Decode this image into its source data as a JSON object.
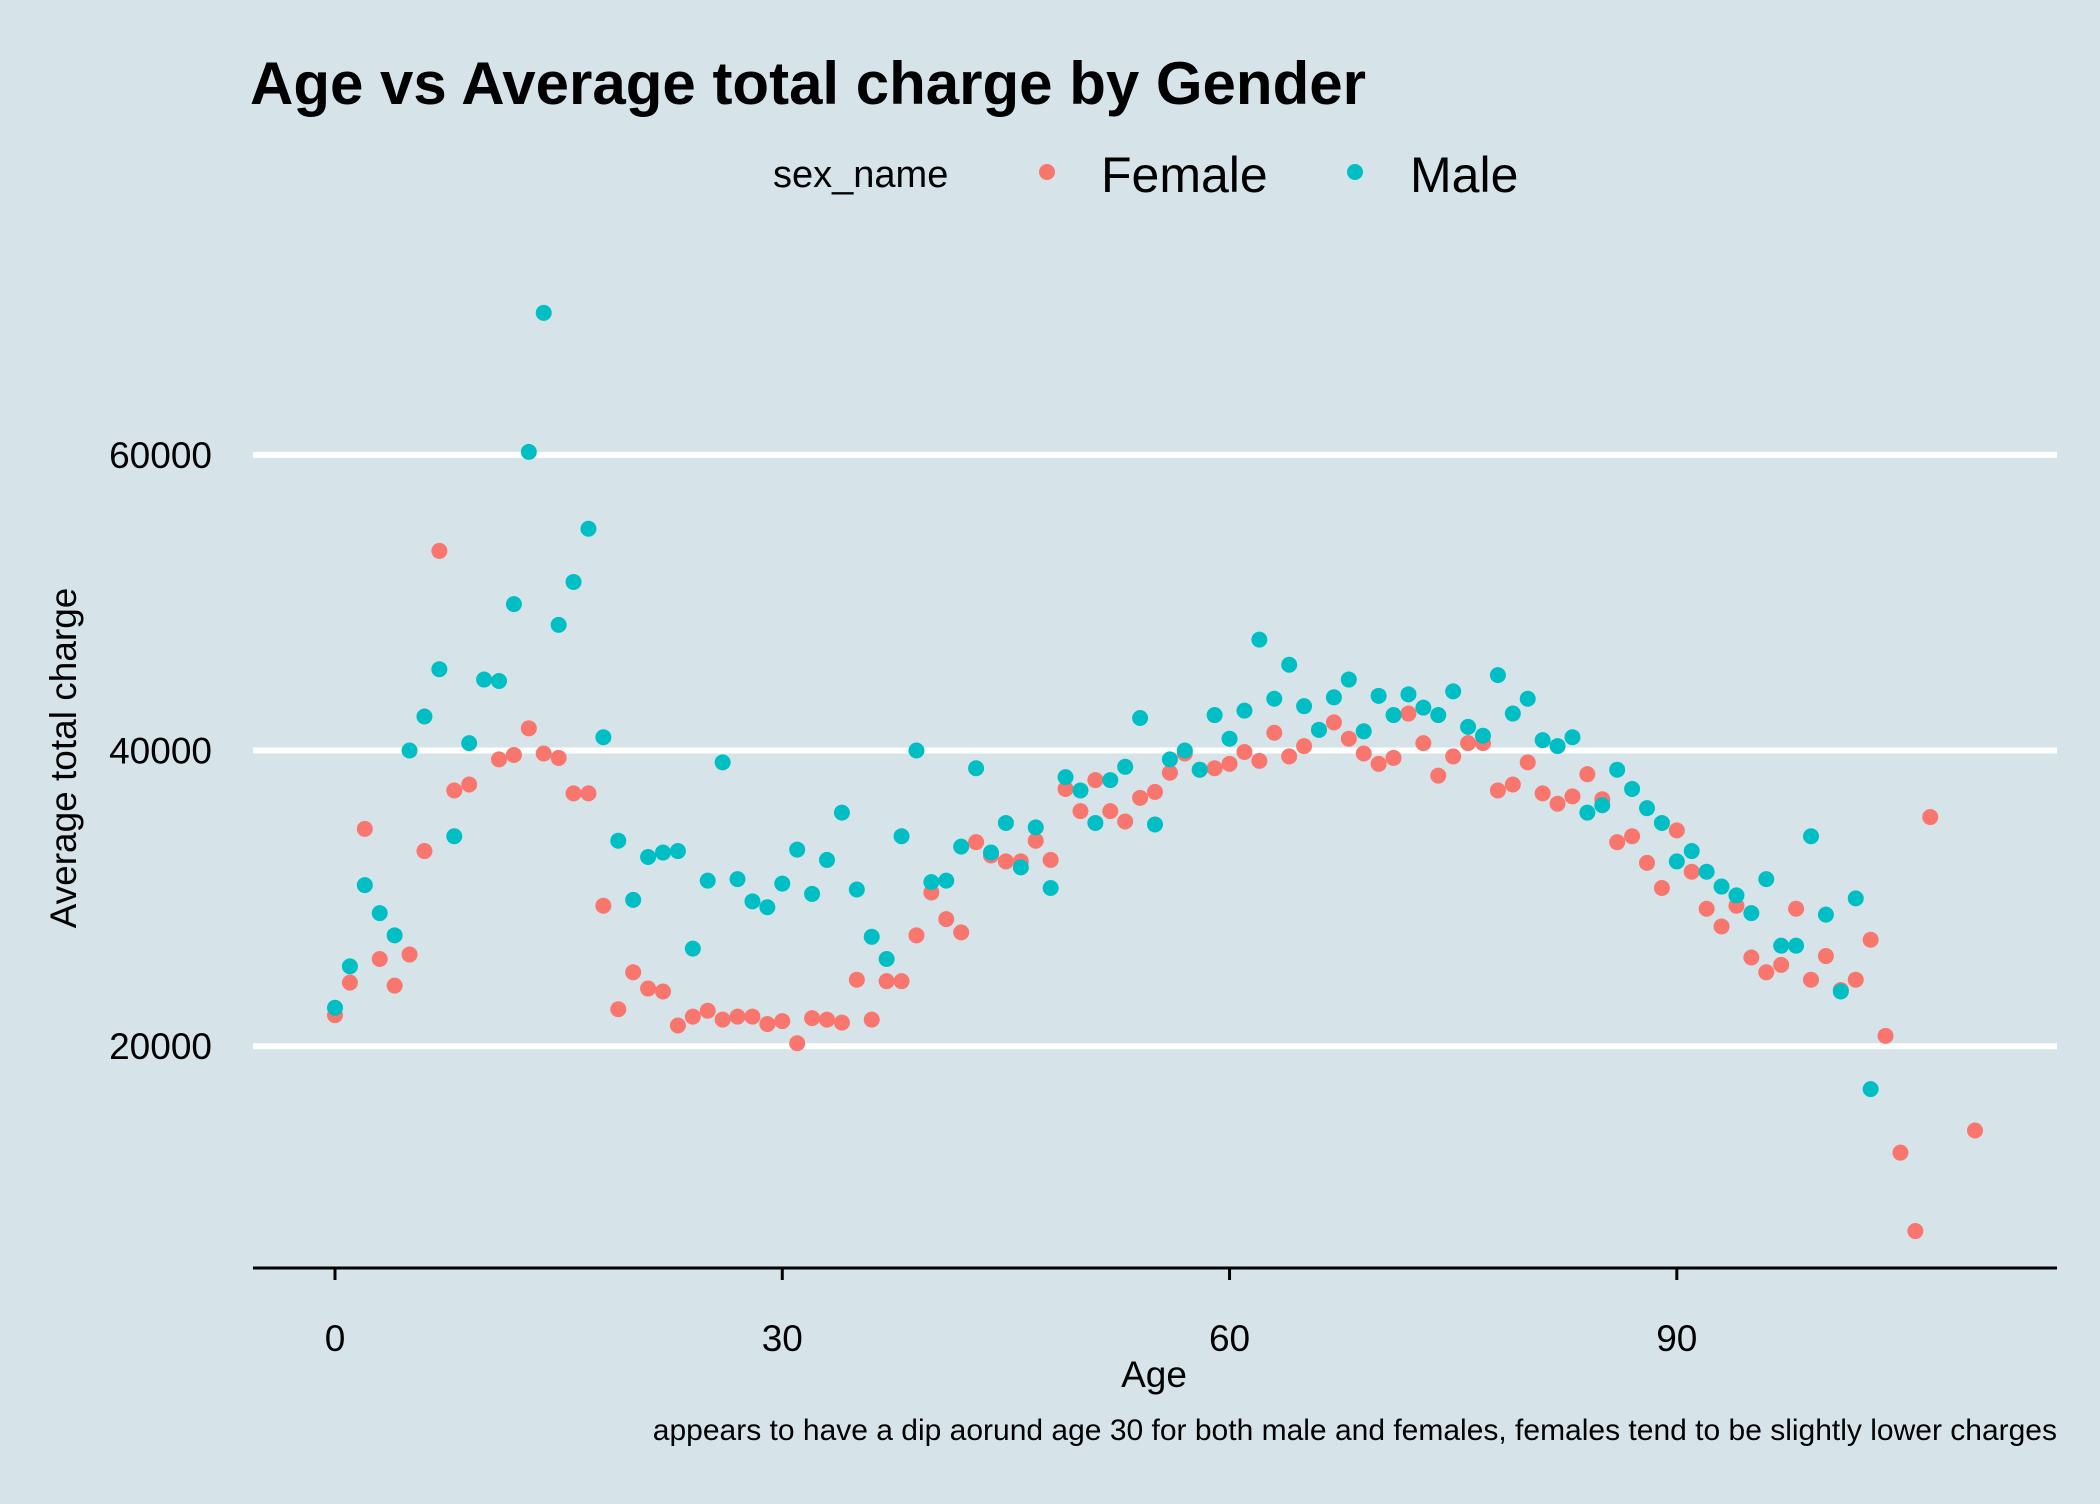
{
  "colors": {
    "background": "#d6e4ea",
    "gridline": "#ffffff",
    "axis": "#000000"
  },
  "chart_data": {
    "type": "scatter",
    "title": "Age vs Average total charge by Gender",
    "xlabel": "Age",
    "ylabel": "Average total charge",
    "caption": "appears to have a dip aorund age 30 for both male and females, females tend to be slightly lower charges",
    "legend": {
      "title": "sex_name",
      "placement": "top"
    },
    "xlim": [
      -5.5,
      115.5
    ],
    "ylim": [
      5000,
      72500
    ],
    "x_ticks": [
      0,
      30,
      60,
      90
    ],
    "y_ticks": [
      20000,
      40000,
      60000
    ],
    "grid": "horizontal-major",
    "series": [
      {
        "name": "Female",
        "color": "#f8766d",
        "points": [
          [
            0,
            22100
          ],
          [
            1,
            24300
          ],
          [
            2,
            34700
          ],
          [
            3,
            25900
          ],
          [
            4,
            24100
          ],
          [
            5,
            26200
          ],
          [
            6,
            33200
          ],
          [
            7,
            53500
          ],
          [
            8,
            37300
          ],
          [
            9,
            37700
          ],
          [
            11,
            39400
          ],
          [
            12,
            39700
          ],
          [
            13,
            41500
          ],
          [
            14,
            39800
          ],
          [
            15,
            39500
          ],
          [
            16,
            37100
          ],
          [
            17,
            37100
          ],
          [
            18,
            29500
          ],
          [
            19,
            22500
          ],
          [
            20,
            25000
          ],
          [
            21,
            23900
          ],
          [
            22,
            23700
          ],
          [
            23,
            21400
          ],
          [
            24,
            22000
          ],
          [
            25,
            22400
          ],
          [
            26,
            21800
          ],
          [
            27,
            22000
          ],
          [
            28,
            22000
          ],
          [
            29,
            21500
          ],
          [
            30,
            21700
          ],
          [
            31,
            20200
          ],
          [
            32,
            21900
          ],
          [
            33,
            21800
          ],
          [
            34,
            21600
          ],
          [
            35,
            24500
          ],
          [
            36,
            21800
          ],
          [
            37,
            24400
          ],
          [
            38,
            24400
          ],
          [
            39,
            27500
          ],
          [
            40,
            30400
          ],
          [
            41,
            28600
          ],
          [
            42,
            27700
          ],
          [
            43,
            33800
          ],
          [
            44,
            32900
          ],
          [
            45,
            32500
          ],
          [
            46,
            32500
          ],
          [
            47,
            33900
          ],
          [
            48,
            32600
          ],
          [
            49,
            37400
          ],
          [
            50,
            35900
          ],
          [
            51,
            38000
          ],
          [
            52,
            35900
          ],
          [
            53,
            35200
          ],
          [
            54,
            36800
          ],
          [
            55,
            37200
          ],
          [
            56,
            38500
          ],
          [
            57,
            39800
          ],
          [
            58,
            38700
          ],
          [
            59,
            38800
          ],
          [
            60,
            39100
          ],
          [
            61,
            39900
          ],
          [
            62,
            39300
          ],
          [
            63,
            41200
          ],
          [
            64,
            39600
          ],
          [
            65,
            40300
          ],
          [
            66,
            41400
          ],
          [
            67,
            41900
          ],
          [
            68,
            40800
          ],
          [
            69,
            39800
          ],
          [
            70,
            39100
          ],
          [
            71,
            39500
          ],
          [
            72,
            42500
          ],
          [
            73,
            40500
          ],
          [
            74,
            38300
          ],
          [
            75,
            39600
          ],
          [
            76,
            40500
          ],
          [
            77,
            40500
          ],
          [
            78,
            37300
          ],
          [
            79,
            37700
          ],
          [
            80,
            39200
          ],
          [
            81,
            37100
          ],
          [
            82,
            36400
          ],
          [
            83,
            36900
          ],
          [
            84,
            38400
          ],
          [
            85,
            36700
          ],
          [
            86,
            33800
          ],
          [
            87,
            34200
          ],
          [
            88,
            32400
          ],
          [
            89,
            30700
          ],
          [
            90,
            34600
          ],
          [
            91,
            31800
          ],
          [
            92,
            29300
          ],
          [
            93,
            28100
          ],
          [
            94,
            29500
          ],
          [
            95,
            26000
          ],
          [
            96,
            25000
          ],
          [
            97,
            25500
          ],
          [
            98,
            29300
          ],
          [
            99,
            24500
          ],
          [
            100,
            26100
          ],
          [
            101,
            23800
          ],
          [
            102,
            24500
          ],
          [
            103,
            27200
          ],
          [
            104,
            20700
          ],
          [
            105,
            12800
          ],
          [
            106,
            7500
          ],
          [
            107,
            35500
          ],
          [
            110,
            14300
          ]
        ]
      },
      {
        "name": "Male",
        "color": "#00bfc4",
        "points": [
          [
            0,
            22600
          ],
          [
            1,
            25400
          ],
          [
            2,
            30900
          ],
          [
            3,
            29000
          ],
          [
            4,
            27500
          ],
          [
            5,
            40000
          ],
          [
            6,
            42300
          ],
          [
            7,
            45500
          ],
          [
            8,
            34200
          ],
          [
            9,
            40500
          ],
          [
            10,
            44800
          ],
          [
            11,
            44700
          ],
          [
            12,
            49900
          ],
          [
            13,
            60200
          ],
          [
            14,
            69600
          ],
          [
            15,
            48500
          ],
          [
            16,
            51400
          ],
          [
            17,
            55000
          ],
          [
            18,
            40900
          ],
          [
            19,
            33900
          ],
          [
            20,
            29900
          ],
          [
            21,
            32800
          ],
          [
            22,
            33100
          ],
          [
            23,
            33200
          ],
          [
            24,
            26600
          ],
          [
            25,
            31200
          ],
          [
            26,
            39200
          ],
          [
            27,
            31300
          ],
          [
            28,
            29800
          ],
          [
            29,
            29400
          ],
          [
            30,
            31000
          ],
          [
            31,
            33300
          ],
          [
            32,
            30300
          ],
          [
            33,
            32600
          ],
          [
            34,
            35800
          ],
          [
            35,
            30600
          ],
          [
            36,
            27400
          ],
          [
            37,
            25900
          ],
          [
            38,
            34200
          ],
          [
            39,
            40000
          ],
          [
            40,
            31100
          ],
          [
            41,
            31200
          ],
          [
            42,
            33500
          ],
          [
            43,
            38800
          ],
          [
            44,
            33100
          ],
          [
            45,
            35100
          ],
          [
            46,
            32100
          ],
          [
            47,
            34800
          ],
          [
            48,
            30700
          ],
          [
            49,
            38200
          ],
          [
            50,
            37300
          ],
          [
            51,
            35100
          ],
          [
            52,
            38000
          ],
          [
            53,
            38900
          ],
          [
            54,
            42200
          ],
          [
            55,
            35000
          ],
          [
            56,
            39400
          ],
          [
            57,
            40000
          ],
          [
            58,
            38700
          ],
          [
            59,
            42400
          ],
          [
            60,
            40800
          ],
          [
            61,
            42700
          ],
          [
            62,
            47500
          ],
          [
            63,
            43500
          ],
          [
            64,
            45800
          ],
          [
            65,
            43000
          ],
          [
            66,
            41400
          ],
          [
            67,
            43600
          ],
          [
            68,
            44800
          ],
          [
            69,
            41300
          ],
          [
            70,
            43700
          ],
          [
            71,
            42400
          ],
          [
            72,
            43800
          ],
          [
            73,
            42900
          ],
          [
            74,
            42400
          ],
          [
            75,
            44000
          ],
          [
            76,
            41600
          ],
          [
            77,
            41000
          ],
          [
            78,
            45100
          ],
          [
            79,
            42500
          ],
          [
            80,
            43500
          ],
          [
            81,
            40700
          ],
          [
            82,
            40300
          ],
          [
            83,
            40900
          ],
          [
            84,
            35800
          ],
          [
            85,
            36300
          ],
          [
            86,
            38700
          ],
          [
            87,
            37400
          ],
          [
            88,
            36100
          ],
          [
            89,
            35100
          ],
          [
            90,
            32500
          ],
          [
            91,
            33200
          ],
          [
            92,
            31800
          ],
          [
            93,
            30800
          ],
          [
            94,
            30200
          ],
          [
            95,
            29000
          ],
          [
            96,
            31300
          ],
          [
            97,
            26800
          ],
          [
            98,
            26800
          ],
          [
            99,
            34200
          ],
          [
            100,
            28900
          ],
          [
            101,
            23700
          ],
          [
            102,
            30000
          ],
          [
            103,
            17100
          ]
        ]
      }
    ]
  }
}
